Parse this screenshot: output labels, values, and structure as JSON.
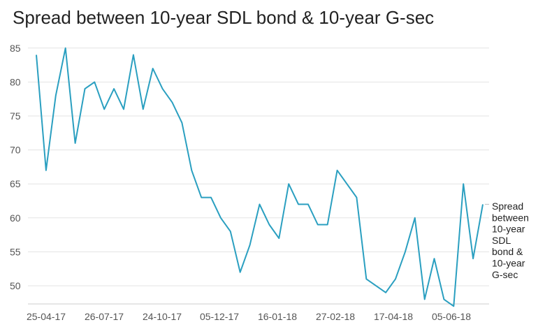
{
  "chart_data": {
    "type": "line",
    "title": "Spread between 10-year SDL bond & 10-year G-sec",
    "xlabel": "",
    "ylabel": "",
    "ylim": [
      47,
      85
    ],
    "yticks": [
      50,
      55,
      60,
      65,
      70,
      75,
      80,
      85
    ],
    "xtick_labels": [
      "25-04-17",
      "26-07-17",
      "24-10-17",
      "05-12-17",
      "16-01-18",
      "27-02-18",
      "17-04-18",
      "05-06-18"
    ],
    "grid": true,
    "legend_position": "right",
    "series": [
      {
        "name_lines": [
          "Spread",
          "between",
          "10-year",
          "SDL",
          "bond &",
          "10-year",
          "G-sec"
        ],
        "color": "#2a9fc0",
        "values": [
          84,
          67,
          78,
          85,
          71,
          79,
          80,
          76,
          79,
          76,
          84,
          76,
          82,
          79,
          77,
          74,
          67,
          63,
          63,
          60,
          58,
          52,
          56,
          62,
          59,
          57,
          65,
          62,
          62,
          59,
          59,
          67,
          65,
          63,
          51,
          null,
          49,
          51,
          55,
          60,
          48,
          54,
          48,
          47,
          65,
          54,
          62
        ]
      }
    ]
  }
}
